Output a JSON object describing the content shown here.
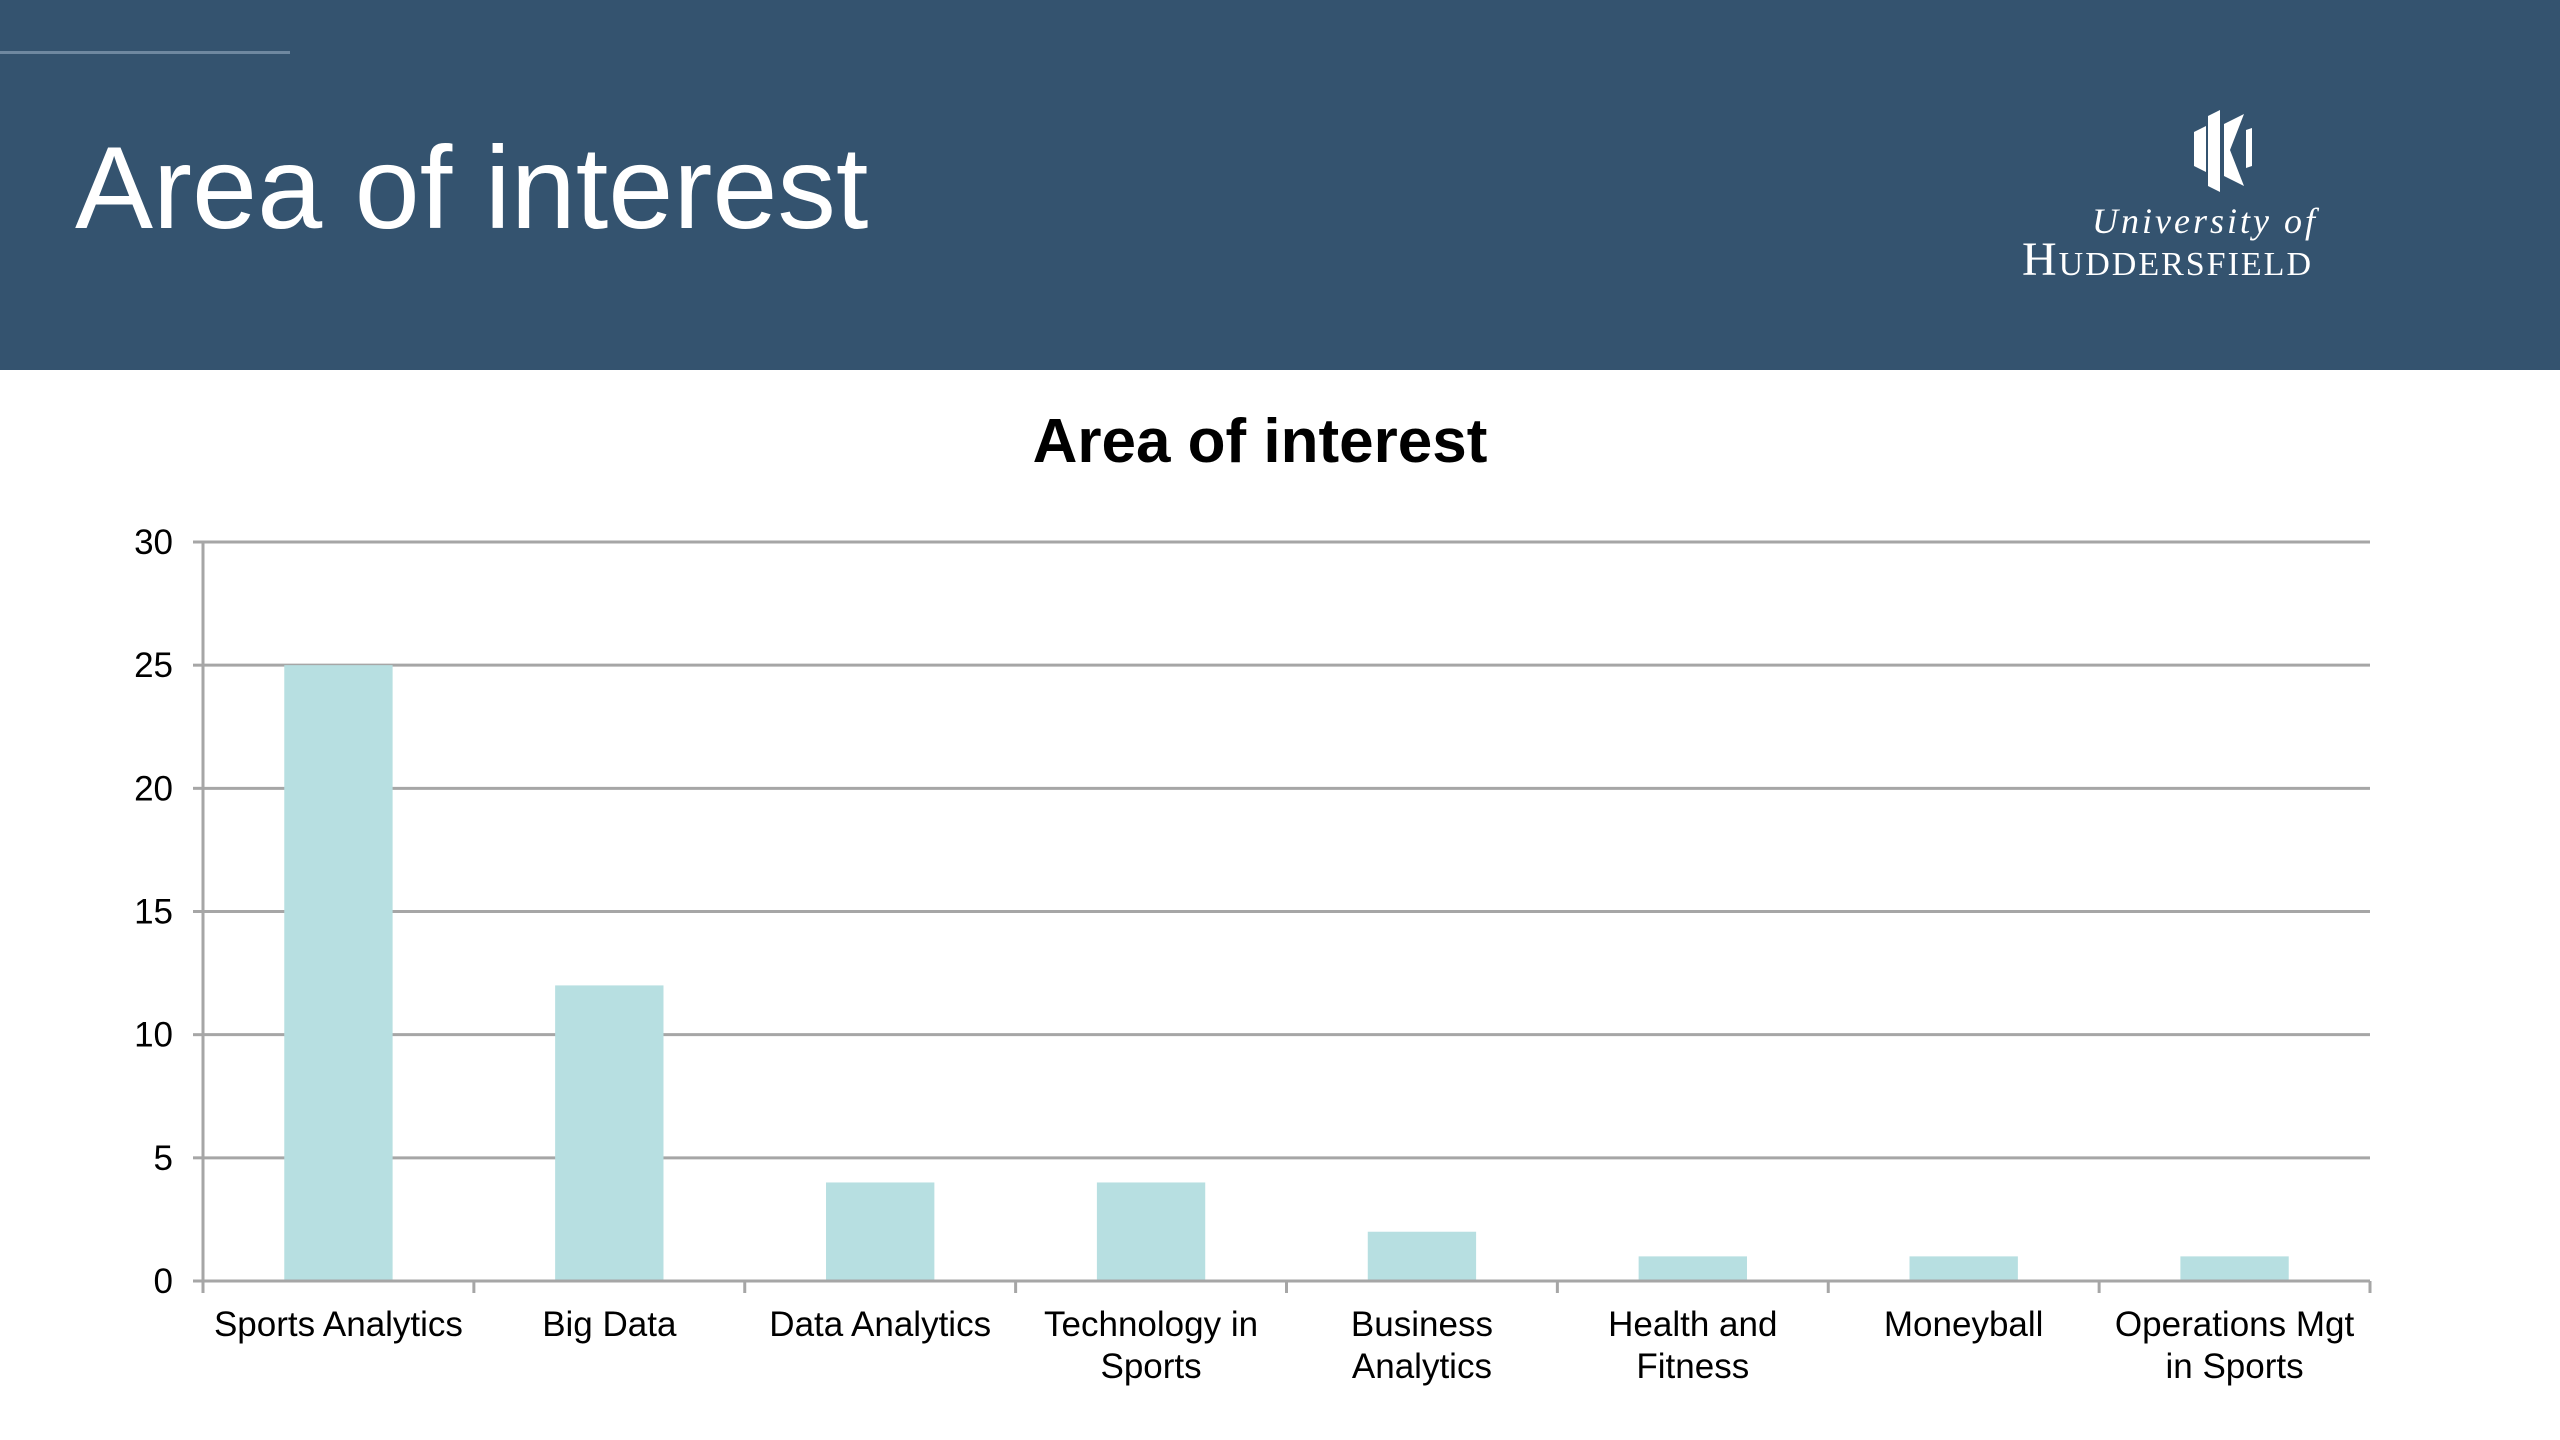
{
  "header": {
    "title": "Area of interest",
    "logo_line1": "University of",
    "logo_line2": "Huddersfield"
  },
  "colors": {
    "header_bg": "#34536f",
    "bar": "#b7dfe1",
    "grid": "#a6a6a6"
  },
  "chart_data": {
    "type": "bar",
    "title": "Area of interest",
    "xlabel": "",
    "ylabel": "",
    "ylim": [
      0,
      30
    ],
    "yticks": [
      0,
      5,
      10,
      15,
      20,
      25,
      30
    ],
    "grid": true,
    "legend": "none",
    "categories": [
      [
        "Sports Analytics"
      ],
      [
        "Big Data"
      ],
      [
        "Data Analytics"
      ],
      [
        "Technology in",
        "Sports"
      ],
      [
        "Business",
        "Analytics"
      ],
      [
        "Health and",
        "Fitness"
      ],
      [
        "Moneyball"
      ],
      [
        "Operations Mgt",
        "in Sports"
      ]
    ],
    "values": [
      25,
      12,
      4,
      4,
      2,
      1,
      1,
      1
    ]
  }
}
